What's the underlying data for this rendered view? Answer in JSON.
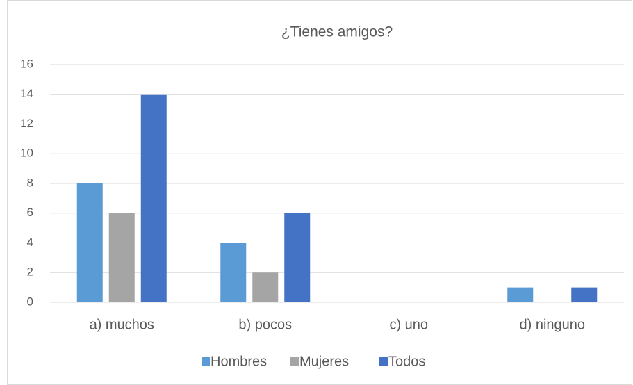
{
  "chart_data": {
    "type": "bar",
    "title": "¿Tienes amigos?",
    "categories": [
      "a) muchos",
      "b) pocos",
      "c) uno",
      "d) ninguno"
    ],
    "series": [
      {
        "name": "Hombres",
        "color": "#5b9bd5",
        "values": [
          8,
          4,
          0,
          1
        ]
      },
      {
        "name": "Mujeres",
        "color": "#a5a5a5",
        "values": [
          6,
          2,
          0,
          0
        ]
      },
      {
        "name": "Todos",
        "color": "#4472c4",
        "values": [
          14,
          6,
          0,
          1
        ]
      }
    ],
    "ylim": [
      0,
      16
    ],
    "yticks": [
      0,
      2,
      4,
      6,
      8,
      10,
      12,
      14,
      16
    ],
    "grid": true,
    "legend": "bottom"
  }
}
